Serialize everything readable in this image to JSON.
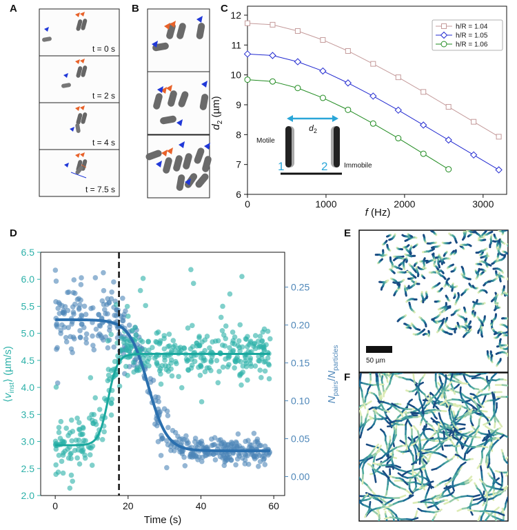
{
  "panel_labels": {
    "a": "A",
    "b": "B",
    "c": "C",
    "d": "D",
    "e": "E",
    "f": "F"
  },
  "panel_a": {
    "times": [
      "t = 0 s",
      "t = 2 s",
      "t = 4 s",
      "t = 7.5 s"
    ],
    "marker_colors": {
      "orange": "#e8622a",
      "blue": "#2038d8"
    }
  },
  "chart_data": [
    {
      "id": "C",
      "type": "line",
      "xlabel": "f (Hz)",
      "ylabel": "d2 (µm)",
      "xlim": [
        0,
        3300
      ],
      "ylim": [
        6.0,
        12.3
      ],
      "xticks": [
        0,
        1000,
        2000,
        3000
      ],
      "yticks": [
        6,
        7,
        8,
        9,
        10,
        11,
        12
      ],
      "x_tick_labels": [
        "0",
        "1000",
        "2000",
        "3000"
      ],
      "y_tick_labels": [
        "6",
        "7",
        "8",
        "9",
        "10",
        "11",
        "12"
      ],
      "grid": false,
      "legend": "top-right",
      "series": [
        {
          "name": "h/R = 1.04",
          "color": "#c49a9a",
          "marker": "square",
          "x": [
            0,
            320,
            640,
            960,
            1280,
            1600,
            1920,
            2240,
            2560,
            2880,
            3200
          ],
          "y": [
            11.73,
            11.68,
            11.47,
            11.17,
            10.8,
            10.37,
            9.92,
            9.43,
            8.93,
            8.43,
            7.93
          ]
        },
        {
          "name": "h/R = 1.05",
          "color": "#2028d0",
          "marker": "diamond",
          "x": [
            0,
            320,
            640,
            960,
            1280,
            1600,
            1920,
            2240,
            2560,
            2880,
            3200
          ],
          "y": [
            10.7,
            10.65,
            10.44,
            10.13,
            9.73,
            9.29,
            8.82,
            8.32,
            7.82,
            7.32,
            6.82
          ]
        },
        {
          "name": "h/R = 1.06",
          "color": "#1e8a1e",
          "marker": "circle",
          "x": [
            0,
            320,
            640,
            960,
            1280,
            1600,
            1920,
            2240,
            2560
          ],
          "y": [
            9.84,
            9.78,
            9.56,
            9.23,
            8.83,
            8.37,
            7.88,
            7.36,
            6.84
          ]
        }
      ],
      "inset": {
        "distance_label": "d2",
        "left_label": "Motile",
        "right_label": "Immobile",
        "num1": "1",
        "num2": "2"
      }
    },
    {
      "id": "D",
      "type": "scatter",
      "xlabel": "Time (s)",
      "ylabel_left": "⟨v_inst⟩ (µm/s)",
      "ylabel_right": "N_pairs/N_particles",
      "xlim": [
        -4,
        63
      ],
      "ylim_left": [
        2.0,
        6.5
      ],
      "ylim_right": [
        -0.025,
        0.296
      ],
      "xticks": [
        0,
        20,
        40,
        60
      ],
      "x_tick_labels": [
        "0",
        "20",
        "40",
        "60"
      ],
      "yticks_left": [
        2.0,
        2.5,
        3.0,
        3.5,
        4.0,
        4.5,
        5.0,
        5.5,
        6.0,
        6.5
      ],
      "y_tick_labels_left": [
        "2.0",
        "2.5",
        "3.0",
        "3.5",
        "4.0",
        "4.5",
        "5.0",
        "5.5",
        "6.0",
        "6.5"
      ],
      "yticks_right": [
        0.0,
        0.05,
        0.1,
        0.15,
        0.2,
        0.25
      ],
      "y_tick_labels_right": [
        "0.00",
        "0.05",
        "0.10",
        "0.15",
        "0.20",
        "0.25"
      ],
      "vline_x": 17.5,
      "colors": {
        "velocity": "#2bb0a8",
        "pairs": "#4d86b8",
        "velocity_fit": "#1aa89e",
        "pairs_fit": "#2a6fae"
      },
      "velocity_fit": {
        "low": 2.93,
        "high": 4.62,
        "x0": 14.5,
        "width": 1.3
      },
      "pairs_fit": {
        "high": 0.207,
        "low": 0.034,
        "x0": 25.5,
        "width": 2.6
      },
      "n_points_per_series": 420,
      "time_range": [
        0,
        59
      ]
    }
  ],
  "panel_e": {
    "scale_label": "50 µm"
  }
}
